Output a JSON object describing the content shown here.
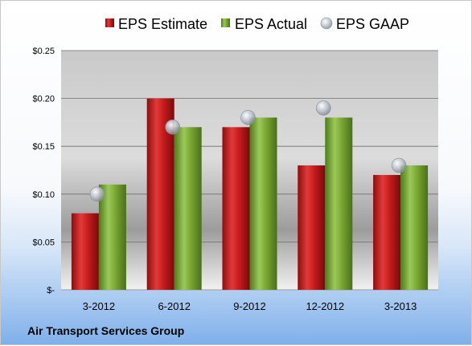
{
  "chart_data": {
    "type": "bar",
    "title": "",
    "xlabel": "",
    "ylabel": "",
    "categories": [
      "3-2012",
      "6-2012",
      "9-2012",
      "12-2012",
      "3-2013"
    ],
    "series": [
      {
        "name": "EPS Estimate",
        "kind": "bar",
        "values": [
          0.08,
          0.2,
          0.17,
          0.13,
          0.12
        ]
      },
      {
        "name": "EPS Actual",
        "kind": "bar",
        "values": [
          0.11,
          0.17,
          0.18,
          0.18,
          0.13
        ]
      },
      {
        "name": "EPS GAAP",
        "kind": "marker",
        "values": [
          0.1,
          0.17,
          0.18,
          0.19,
          0.13
        ]
      }
    ],
    "ylim": [
      0,
      0.25
    ],
    "yticks": [
      0,
      0.05,
      0.1,
      0.15,
      0.2,
      0.25
    ],
    "ytick_labels": [
      "$-",
      "$0.05",
      "$0.10",
      "$0.15",
      "$0.20",
      "$0.25"
    ],
    "grid": true,
    "legend_position": "top",
    "colors": {
      "estimate": "#cc1f1f",
      "actual": "#7aa832",
      "gaap": "#b8bfc8"
    }
  },
  "footer": {
    "company": "Air Transport Services Group"
  }
}
